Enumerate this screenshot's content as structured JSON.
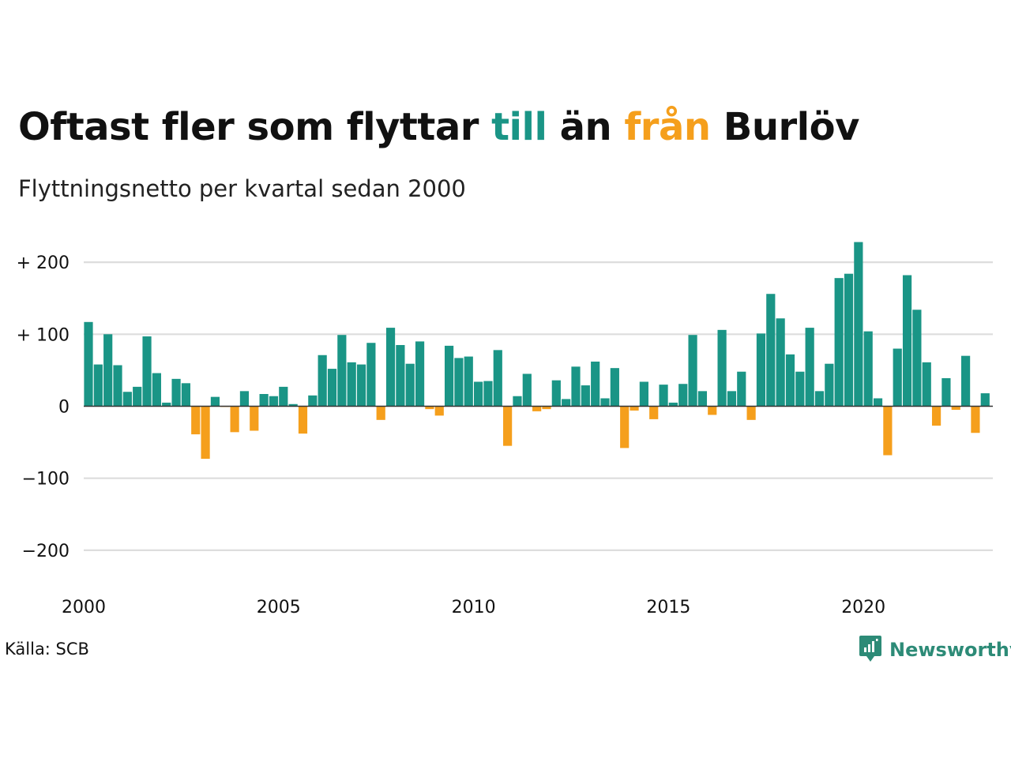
{
  "title": {
    "part1": "Oftast fler som flyttar ",
    "till": "till",
    "part2": " än ",
    "fran": "från",
    "part3": " Burlöv"
  },
  "subtitle": "Flyttningsnetto per kvartal sedan 2000",
  "source": "Källa: SCB",
  "brand": {
    "name": "Newsworthy",
    "icon": "newsworthy-logo-icon"
  },
  "colors": {
    "positive": "#1a9586",
    "negative": "#f59f1c",
    "gridline": "#dddddd",
    "zero_line": "#333333",
    "brand": "#2d8b77"
  },
  "chart_data": {
    "type": "bar",
    "x_tick_labels": [
      "2000",
      "2005",
      "2010",
      "2015",
      "2020"
    ],
    "y_ticks": [
      {
        "value": 200,
        "label": "+ 200"
      },
      {
        "value": 100,
        "label": "+ 100"
      },
      {
        "value": 0,
        "label": "0"
      },
      {
        "value": -100,
        "label": "−100"
      },
      {
        "value": -200,
        "label": "−200"
      }
    ],
    "ylim": [
      -250,
      250
    ],
    "grid": true,
    "first_quarter": "2000 Q1",
    "values": [
      117,
      58,
      100,
      57,
      20,
      27,
      97,
      46,
      5,
      38,
      32,
      -39,
      -73,
      13,
      -1,
      -36,
      21,
      -34,
      17,
      14,
      27,
      3,
      -38,
      15,
      71,
      52,
      99,
      61,
      58,
      88,
      -19,
      109,
      85,
      59,
      90,
      -4,
      -13,
      84,
      67,
      69,
      34,
      35,
      78,
      -55,
      14,
      45,
      -7,
      -4,
      36,
      10,
      55,
      29,
      62,
      11,
      53,
      -58,
      -6,
      34,
      -18,
      30,
      5,
      31,
      99,
      21,
      -12,
      106,
      21,
      48,
      -19,
      101,
      156,
      122,
      72,
      48,
      109,
      21,
      59,
      178,
      184,
      228,
      104,
      11,
      -68,
      80,
      182,
      134,
      61,
      -27,
      39,
      -5,
      70,
      -37,
      18
    ]
  }
}
